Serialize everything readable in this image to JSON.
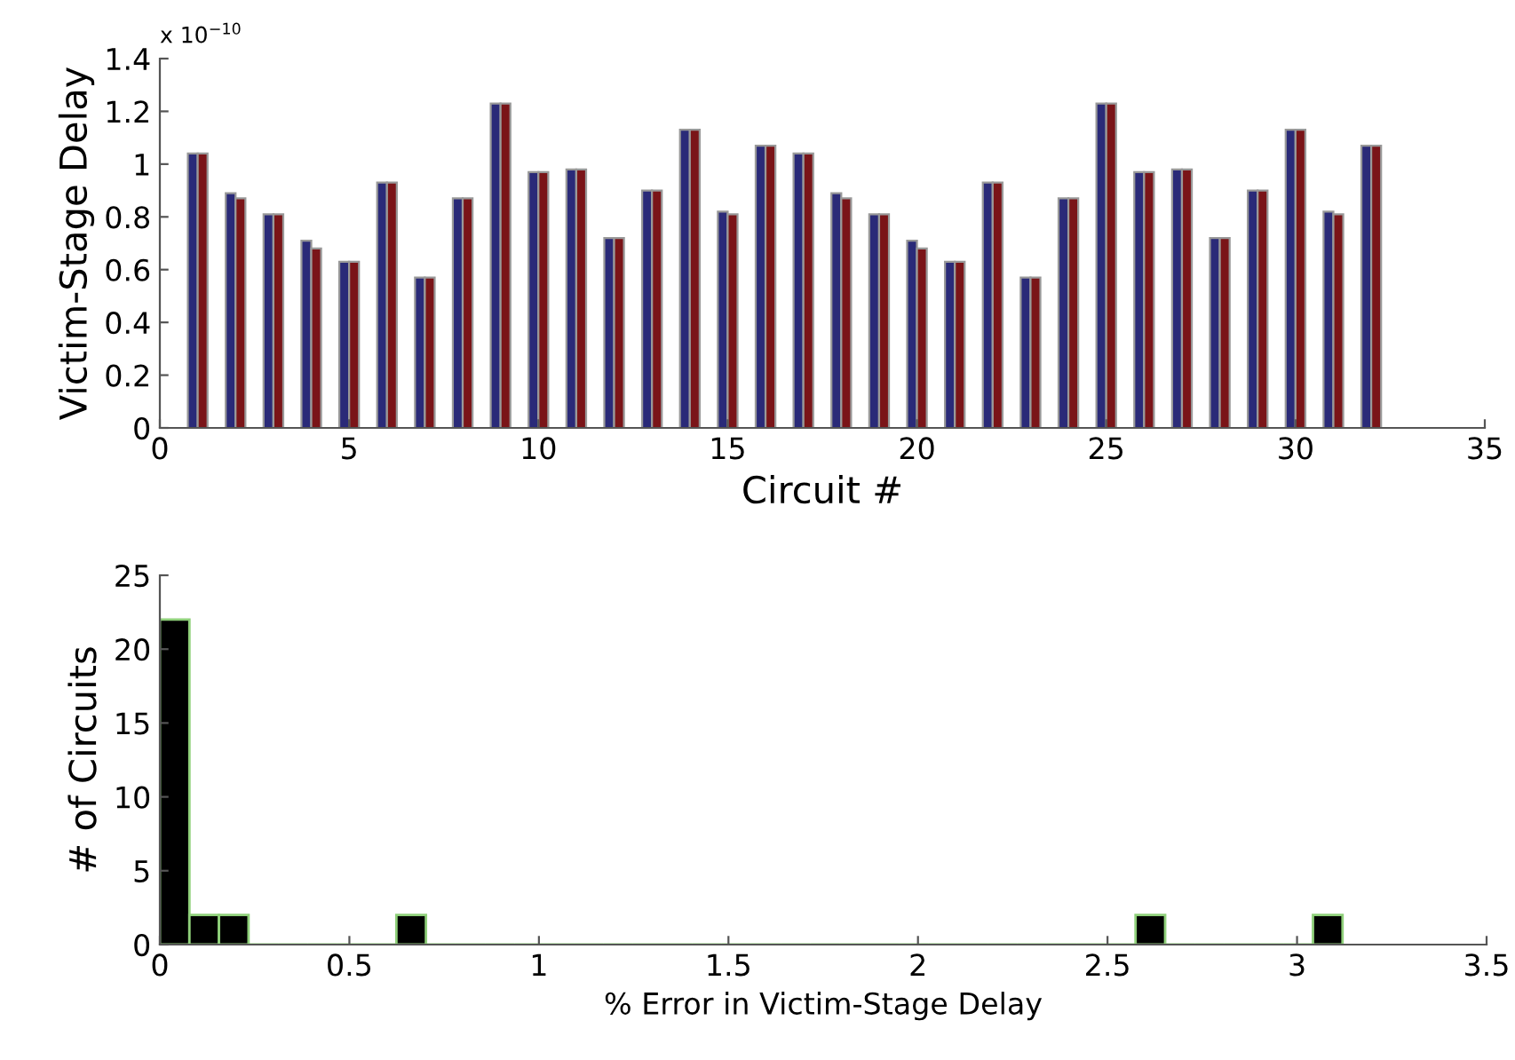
{
  "chart_data": [
    {
      "type": "bar",
      "ylabel": "Victim-Stage Delay",
      "xlabel": "Circuit #",
      "annotations": [
        "x 10$^{−10}$"
      ],
      "x": [
        1,
        2,
        3,
        4,
        5,
        6,
        7,
        8,
        9,
        10,
        11,
        12,
        13,
        14,
        15,
        16,
        17,
        18,
        19,
        20,
        21,
        22,
        23,
        24,
        25,
        26,
        27,
        28,
        29,
        30,
        31,
        32
      ],
      "series": [
        {
          "color": "#2a2a78",
          "values": [
            1.04,
            0.89,
            0.81,
            0.71,
            0.63,
            0.93,
            0.57,
            0.87,
            1.23,
            0.97,
            0.98,
            0.72,
            0.9,
            1.13,
            0.82,
            1.07,
            1.04,
            0.89,
            0.81,
            0.71,
            0.63,
            0.93,
            0.57,
            0.87,
            1.23,
            0.97,
            0.98,
            0.72,
            0.9,
            1.13,
            0.82,
            1.07
          ]
        },
        {
          "color": "#7a1418",
          "values": [
            1.04,
            0.87,
            0.81,
            0.68,
            0.63,
            0.93,
            0.57,
            0.87,
            1.23,
            0.97,
            0.98,
            0.72,
            0.9,
            1.13,
            0.81,
            1.07,
            1.04,
            0.87,
            0.81,
            0.68,
            0.63,
            0.93,
            0.57,
            0.87,
            1.23,
            0.97,
            0.98,
            0.72,
            0.9,
            1.13,
            0.81,
            1.07
          ]
        }
      ],
      "xlim": [
        0,
        35
      ],
      "xticks": [
        0,
        5,
        10,
        15,
        20,
        25,
        30,
        35
      ],
      "ylim": [
        0,
        1.4
      ],
      "yticks": [
        0,
        0.2,
        0.4,
        0.6,
        0.8,
        1,
        1.2,
        1.4
      ],
      "grid": false
    },
    {
      "type": "histogram",
      "xlabel": "% Error in Victim-Stage Delay",
      "ylabel": "# of Circuits",
      "color": "#000000",
      "bins": [
        0,
        0.078,
        0.156,
        0.234,
        0.312,
        0.39,
        0.468,
        0.546,
        0.624,
        0.702,
        0.78,
        0.858,
        0.936,
        1.014,
        1.092,
        1.17,
        1.248,
        1.326,
        1.404,
        1.482,
        1.56,
        1.638,
        1.716,
        1.794,
        1.872,
        1.95,
        2.028,
        2.106,
        2.184,
        2.262,
        2.34,
        2.418,
        2.496,
        2.574,
        2.652,
        2.73,
        2.808,
        2.886,
        2.964,
        3.042,
        3.12
      ],
      "values": [
        22,
        2,
        2,
        0,
        0,
        0,
        0,
        0,
        2,
        0,
        0,
        0,
        0,
        0,
        0,
        0,
        0,
        0,
        0,
        0,
        0,
        0,
        0,
        0,
        0,
        0,
        0,
        0,
        0,
        0,
        0,
        0,
        0,
        2,
        0,
        0,
        0,
        0,
        0,
        2
      ],
      "xlim": [
        0,
        3.5
      ],
      "xticks": [
        0,
        0.5,
        1,
        1.5,
        2,
        2.5,
        3,
        3.5
      ],
      "ylim": [
        0,
        25
      ],
      "yticks": [
        0,
        5,
        10,
        15,
        20,
        25
      ],
      "grid": false
    }
  ]
}
